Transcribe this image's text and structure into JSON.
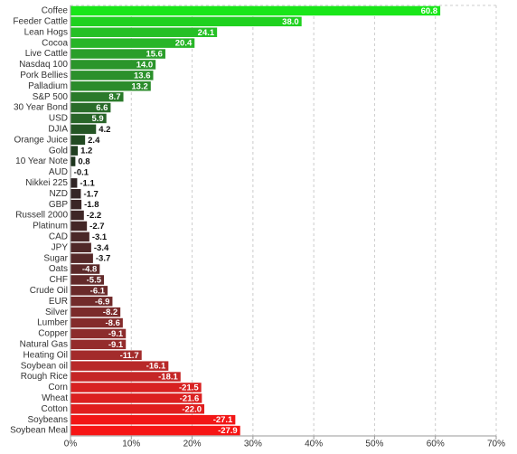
{
  "chart_data": {
    "type": "hbar",
    "categories": [
      "Coffee",
      "Feeder Cattle",
      "Lean Hogs",
      "Cocoa",
      "Live Cattle",
      "Nasdaq 100",
      "Pork Bellies",
      "Palladium",
      "S&P 500",
      "30 Year Bond",
      "USD",
      "DJIA",
      "Orange Juice",
      "Gold",
      "10 Year Note",
      "AUD",
      "Nikkei 225",
      "NZD",
      "GBP",
      "Russell 2000",
      "Platinum",
      "CAD",
      "JPY",
      "Sugar",
      "Oats",
      "CHF",
      "Crude Oil",
      "EUR",
      "Silver",
      "Lumber",
      "Copper",
      "Natural Gas",
      "Heating Oil",
      "Soybean oil",
      "Rough Rice",
      "Corn",
      "Wheat",
      "Cotton",
      "Soybeans",
      "Soybean Meal"
    ],
    "values": [
      60.8,
      38.0,
      24.1,
      20.4,
      15.6,
      14.0,
      13.6,
      13.2,
      8.7,
      6.6,
      5.9,
      4.2,
      2.4,
      1.2,
      0.8,
      -0.1,
      -1.1,
      -1.7,
      -1.8,
      -2.2,
      -2.7,
      -3.1,
      -3.4,
      -3.7,
      -4.8,
      -5.5,
      -6.1,
      -6.9,
      -8.2,
      -8.6,
      -9.1,
      -9.1,
      -11.7,
      -16.1,
      -18.1,
      -21.5,
      -21.6,
      -22.0,
      -27.1,
      -27.9
    ],
    "value_labels": [
      "60.8",
      "38.0",
      "24.1",
      "20.4",
      "15.6",
      "14.0",
      "13.6",
      "13.2",
      "8.7",
      "6.6",
      "5.9",
      "4.2",
      "2.4",
      "1.2",
      "0.8",
      "-0.1",
      "-1.1",
      "-1.7",
      "-1.8",
      "-2.2",
      "-2.7",
      "-3.1",
      "-3.4",
      "-3.7",
      "-4.8",
      "-5.5",
      "-6.1",
      "-6.9",
      "-8.2",
      "-8.6",
      "-9.1",
      "-9.1",
      "-11.7",
      "-16.1",
      "-18.1",
      "-21.5",
      "-21.6",
      "-22.0",
      "-27.1",
      "-27.9"
    ],
    "colors": [
      "#19e619",
      "#1fd11f",
      "#25c025",
      "#28b528",
      "#2a9e2a",
      "#2b952b",
      "#2b902b",
      "#2b8c2b",
      "#2a7a2a",
      "#2a6c2a",
      "#296529",
      "#255525",
      "#224a22",
      "#203f20",
      "#1e361e",
      "#2a2424",
      "#302525",
      "#352626",
      "#3a2626",
      "#3f2727",
      "#442727",
      "#4a2828",
      "#502828",
      "#562929",
      "#5c2929",
      "#632a2a",
      "#6a2a2a",
      "#722b2b",
      "#7b2b2b",
      "#842b2b",
      "#8c2c2c",
      "#942c2c",
      "#a32b2b",
      "#b82929",
      "#c52626",
      "#d82121",
      "#db2020",
      "#e01e1e",
      "#f21616",
      "#f61515"
    ],
    "xlim": [
      0,
      70
    ],
    "xticks": [
      {
        "value": 0,
        "label": "0%"
      },
      {
        "value": 10,
        "label": "10%"
      },
      {
        "value": 20,
        "label": "20%"
      },
      {
        "value": 30,
        "label": "30%"
      },
      {
        "value": 40,
        "label": "40%"
      },
      {
        "value": 50,
        "label": "50%"
      },
      {
        "value": 60,
        "label": "60%"
      },
      {
        "value": 70,
        "label": "70%"
      }
    ],
    "grid": true
  }
}
